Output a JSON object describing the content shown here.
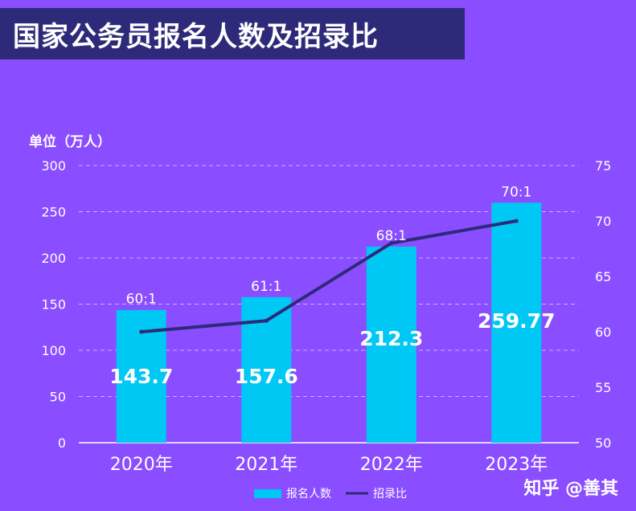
{
  "title": "国家公务员报名人数及招录比",
  "watermark": "知乎 @善其",
  "chart_data": {
    "type": "bar",
    "unit_label": "单位（万人）",
    "categories": [
      "2020年",
      "2021年",
      "2022年",
      "2023年"
    ],
    "ylim": [
      0,
      300
    ],
    "y_ticks": [
      0,
      50,
      100,
      150,
      200,
      250,
      300
    ],
    "y2lim": [
      50,
      75
    ],
    "y2_ticks": [
      50,
      55,
      60,
      65,
      70,
      75
    ],
    "grid": true,
    "legend_position": "bottom",
    "series": [
      {
        "name": "报名人数",
        "type": "bar",
        "axis": "left",
        "values": [
          143.7,
          157.6,
          212.3,
          259.77
        ],
        "labels": [
          "143.7",
          "157.6",
          "212.3",
          "259.77"
        ],
        "color": "#00c8f5"
      },
      {
        "name": "招录比",
        "type": "line",
        "axis": "right",
        "values": [
          60,
          61,
          68,
          70
        ],
        "labels": [
          "60:1",
          "61:1",
          "68:1",
          "70:1"
        ],
        "color": "#2e2a7a"
      }
    ]
  }
}
